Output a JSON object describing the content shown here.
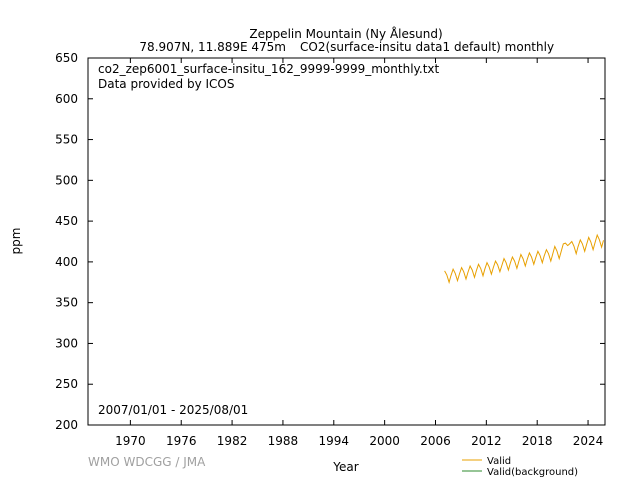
{
  "header": {
    "station": "Zeppelin Mountain (Ny Ålesund)",
    "meta": "78.907N, 11.889E 475m",
    "dataset": "CO2(surface-insitu data1 default) monthly"
  },
  "panel": {
    "filename": "co2_zep6001_surface-insitu_162_9999-9999_monthly.txt",
    "provider": "Data provided by ICOS",
    "period": "2007/01/01 - 2025/08/01"
  },
  "credit": "WMO WDCGG / JMA",
  "colors": {
    "valid": "#e8a000",
    "background": "#2e8b2e",
    "frame": "#000000",
    "credit": "#a0a0a0"
  },
  "chart_data": {
    "type": "line",
    "xlabel": "Year",
    "ylabel": "ppm",
    "xlim": [
      1965,
      2026
    ],
    "ylim": [
      200,
      650
    ],
    "xticks": [
      1970,
      1976,
      1982,
      1988,
      1994,
      2000,
      2006,
      2012,
      2018,
      2024
    ],
    "yticks": [
      200,
      250,
      300,
      350,
      400,
      450,
      500,
      550,
      600,
      650
    ],
    "grid": false,
    "legend": {
      "position": "bottom-right",
      "entries": [
        "Valid",
        "Valid(background)"
      ]
    },
    "series": [
      {
        "name": "Valid",
        "color": "#e8a000",
        "seasonal_summary": [
          {
            "year": 2007,
            "annual_max": 389,
            "annual_min": 375
          },
          {
            "year": 2008,
            "annual_max": 391,
            "annual_min": 377
          },
          {
            "year": 2009,
            "annual_max": 393,
            "annual_min": 379
          },
          {
            "year": 2010,
            "annual_max": 395,
            "annual_min": 381
          },
          {
            "year": 2011,
            "annual_max": 397,
            "annual_min": 383
          },
          {
            "year": 2012,
            "annual_max": 399,
            "annual_min": 385
          },
          {
            "year": 2013,
            "annual_max": 401,
            "annual_min": 388
          },
          {
            "year": 2014,
            "annual_max": 404,
            "annual_min": 390
          },
          {
            "year": 2015,
            "annual_max": 406,
            "annual_min": 392
          },
          {
            "year": 2016,
            "annual_max": 409,
            "annual_min": 395
          },
          {
            "year": 2017,
            "annual_max": 411,
            "annual_min": 397
          },
          {
            "year": 2018,
            "annual_max": 413,
            "annual_min": 399
          },
          {
            "year": 2019,
            "annual_max": 415,
            "annual_min": 401
          },
          {
            "year": 2020,
            "annual_max": 419,
            "annual_min": 404
          },
          {
            "year": 2021,
            "annual_max": 422,
            "annual_min": 420
          },
          {
            "year": 2022,
            "annual_max": 425,
            "annual_min": 410
          },
          {
            "year": 2023,
            "annual_max": 427,
            "annual_min": 413
          },
          {
            "year": 2024,
            "annual_max": 430,
            "annual_min": 415
          },
          {
            "year": 2025,
            "annual_max": 433,
            "annual_min": 418
          }
        ]
      },
      {
        "name": "Valid(background)",
        "color": "#2e8b2e",
        "seasonal_summary": []
      }
    ]
  }
}
